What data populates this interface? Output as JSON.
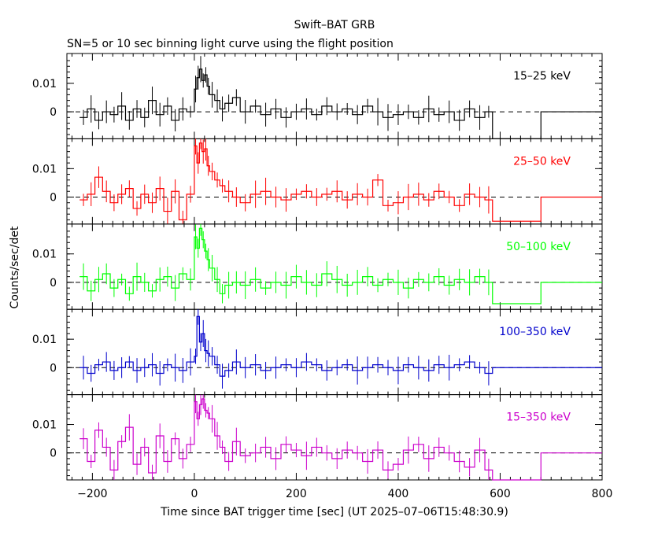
{
  "chart_data": {
    "type": "line",
    "title": "Swift–BAT GRB",
    "subtitle": "SN=5 or 10 sec binning light curve using the flight position",
    "xlabel": "Time since BAT trigger time [sec] (UT 2025–07–06T15:48:30.9)",
    "ylabel": "Counts/sec/det",
    "xlim": [
      -250,
      800
    ],
    "ylim": [
      -0.0095,
      0.0205
    ],
    "xticks": [
      -200,
      0,
      200,
      400,
      600,
      800
    ],
    "yticks": [
      0,
      0.01
    ],
    "ytick_labels": [
      "0",
      "0.01"
    ],
    "xtick_labels": [
      "−200",
      "0",
      "200",
      "400",
      "600",
      "800"
    ],
    "panels": [
      {
        "name": "15–25 keV",
        "color": "#000000",
        "series": {
          "t": [
            -225,
            -210,
            -195,
            -180,
            -165,
            -150,
            -135,
            -120,
            -105,
            -90,
            -75,
            -60,
            -45,
            -30,
            -15,
            0,
            5,
            10,
            15,
            20,
            25,
            30,
            40,
            50,
            60,
            75,
            90,
            110,
            130,
            150,
            170,
            190,
            210,
            230,
            250,
            270,
            290,
            310,
            330,
            350,
            370,
            390,
            410,
            430,
            450,
            470,
            490,
            510,
            530,
            550,
            570,
            585,
            680
          ],
          "y": [
            -0.002,
            0.001,
            -0.003,
            0.0,
            -0.001,
            0.002,
            -0.003,
            0.001,
            -0.002,
            0.004,
            -0.001,
            0.002,
            -0.003,
            0.001,
            0.0,
            0.008,
            0.012,
            0.015,
            0.011,
            0.013,
            0.009,
            0.006,
            0.004,
            0.001,
            0.003,
            0.005,
            0.0,
            0.002,
            -0.001,
            0.001,
            -0.002,
            0.0,
            0.001,
            -0.001,
            0.002,
            0.0,
            0.001,
            -0.001,
            0.002,
            0.0,
            -0.002,
            -0.001,
            0.0,
            -0.002,
            0.001,
            -0.001,
            0.0,
            -0.003,
            0.001,
            -0.002,
            0.0,
            -0.0095,
            0.0
          ]
        }
      },
      {
        "name": "25–50 keV",
        "color": "#ff0000",
        "series": {
          "t": [
            -225,
            -210,
            -195,
            -180,
            -165,
            -150,
            -135,
            -120,
            -105,
            -90,
            -75,
            -60,
            -45,
            -30,
            -15,
            0,
            5,
            10,
            15,
            20,
            25,
            30,
            40,
            50,
            60,
            75,
            90,
            110,
            130,
            150,
            170,
            190,
            210,
            230,
            250,
            270,
            290,
            310,
            330,
            350,
            370,
            390,
            410,
            430,
            450,
            470,
            490,
            510,
            530,
            550,
            570,
            585,
            680
          ],
          "y": [
            -0.001,
            0.001,
            0.007,
            0.002,
            -0.002,
            0.001,
            0.003,
            -0.004,
            0.001,
            -0.002,
            0.003,
            -0.005,
            0.002,
            -0.008,
            0.001,
            0.018,
            0.012,
            0.019,
            0.016,
            0.017,
            0.011,
            0.009,
            0.006,
            0.004,
            0.002,
            0.0,
            -0.002,
            0.001,
            0.002,
            0.0,
            -0.001,
            0.001,
            0.002,
            0.0,
            0.001,
            0.002,
            -0.001,
            0.001,
            0.0,
            0.006,
            -0.003,
            -0.002,
            0.0,
            0.001,
            -0.001,
            0.002,
            0.0,
            -0.003,
            0.001,
            0.0,
            -0.001,
            -0.0085,
            0.0
          ]
        }
      },
      {
        "name": "50–100 keV",
        "color": "#00ff00",
        "series": {
          "t": [
            -225,
            -210,
            -195,
            -180,
            -165,
            -150,
            -135,
            -120,
            -105,
            -90,
            -75,
            -60,
            -45,
            -30,
            -15,
            0,
            5,
            10,
            15,
            20,
            25,
            30,
            40,
            50,
            60,
            75,
            90,
            110,
            130,
            150,
            170,
            190,
            210,
            230,
            250,
            270,
            290,
            310,
            330,
            350,
            370,
            390,
            410,
            430,
            450,
            470,
            490,
            510,
            530,
            550,
            570,
            585,
            680
          ],
          "y": [
            0.002,
            -0.003,
            0.001,
            0.003,
            -0.002,
            0.001,
            -0.004,
            0.002,
            0.0,
            -0.003,
            0.001,
            0.002,
            -0.002,
            0.003,
            0.001,
            0.016,
            0.012,
            0.019,
            0.015,
            0.011,
            0.008,
            0.005,
            0.001,
            -0.004,
            -0.001,
            0.0,
            -0.001,
            0.001,
            -0.002,
            0.0,
            -0.001,
            0.002,
            0.0,
            -0.001,
            0.003,
            0.001,
            -0.001,
            0.0,
            0.002,
            -0.001,
            0.001,
            0.0,
            -0.002,
            0.001,
            0.0,
            0.002,
            -0.001,
            0.001,
            0.0,
            0.002,
            0.0,
            -0.0075,
            0.0
          ]
        }
      },
      {
        "name": "100–350 keV",
        "color": "#0000cc",
        "series": {
          "t": [
            -225,
            -210,
            -195,
            -180,
            -165,
            -150,
            -135,
            -120,
            -105,
            -90,
            -75,
            -60,
            -45,
            -30,
            -15,
            0,
            5,
            10,
            15,
            20,
            25,
            30,
            40,
            50,
            60,
            75,
            90,
            110,
            130,
            150,
            170,
            190,
            210,
            230,
            250,
            270,
            290,
            310,
            330,
            350,
            370,
            390,
            410,
            430,
            450,
            470,
            490,
            510,
            530,
            550,
            570,
            585,
            680
          ],
          "y": [
            0.0,
            -0.002,
            0.001,
            0.002,
            -0.001,
            0.0,
            0.002,
            -0.001,
            0.0,
            0.001,
            -0.002,
            0.001,
            0.0,
            -0.001,
            0.002,
            0.004,
            0.018,
            0.009,
            0.012,
            0.006,
            0.005,
            0.004,
            0.001,
            -0.003,
            -0.001,
            0.002,
            0.0,
            0.001,
            -0.001,
            0.0,
            0.001,
            0.0,
            0.002,
            0.001,
            -0.001,
            0.0,
            0.001,
            -0.001,
            0.0,
            0.001,
            0.0,
            -0.001,
            0.001,
            0.0,
            -0.001,
            0.001,
            0.0,
            0.001,
            0.002,
            0.0,
            -0.002,
            0.0,
            0.0
          ]
        }
      },
      {
        "name": "15–350 keV",
        "color": "#cc00cc",
        "series": {
          "t": [
            -225,
            -210,
            -195,
            -180,
            -165,
            -150,
            -135,
            -120,
            -105,
            -90,
            -75,
            -60,
            -45,
            -30,
            -15,
            0,
            5,
            10,
            15,
            20,
            25,
            30,
            40,
            50,
            60,
            75,
            90,
            110,
            130,
            150,
            170,
            190,
            210,
            230,
            250,
            270,
            290,
            310,
            330,
            350,
            370,
            390,
            410,
            430,
            450,
            470,
            490,
            510,
            530,
            550,
            570,
            585,
            680
          ],
          "y": [
            0.005,
            -0.003,
            0.008,
            0.002,
            -0.006,
            0.004,
            0.009,
            -0.004,
            0.002,
            -0.007,
            0.006,
            -0.003,
            0.005,
            -0.002,
            0.003,
            0.018,
            0.012,
            0.017,
            0.019,
            0.015,
            0.014,
            0.012,
            0.006,
            0.002,
            -0.003,
            0.004,
            -0.001,
            0.0,
            0.002,
            -0.002,
            0.003,
            0.001,
            -0.001,
            0.002,
            0.0,
            -0.002,
            0.001,
            0.0,
            -0.003,
            0.001,
            -0.006,
            -0.004,
            0.001,
            0.003,
            -0.002,
            0.002,
            0.0,
            -0.003,
            -0.005,
            0.001,
            -0.006,
            -0.0095,
            0.0
          ]
        }
      }
    ]
  }
}
